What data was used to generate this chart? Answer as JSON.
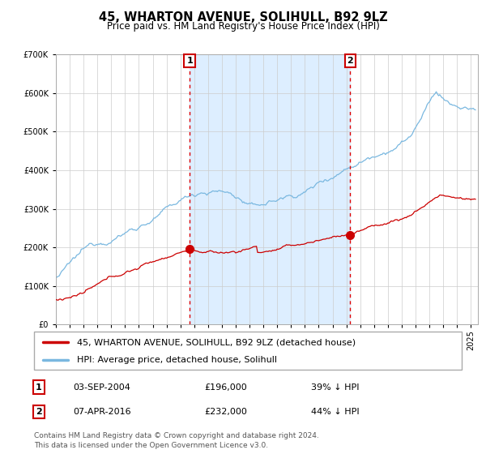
{
  "title": "45, WHARTON AVENUE, SOLIHULL, B92 9LZ",
  "subtitle": "Price paid vs. HM Land Registry's House Price Index (HPI)",
  "legend_line1": "45, WHARTON AVENUE, SOLIHULL, B92 9LZ (detached house)",
  "legend_line2": "HPI: Average price, detached house, Solihull",
  "transaction1_date": "03-SEP-2004",
  "transaction1_price": "£196,000",
  "transaction1_hpi": "39% ↓ HPI",
  "transaction2_date": "07-APR-2016",
  "transaction2_price": "£232,000",
  "transaction2_hpi": "44% ↓ HPI",
  "footer": "Contains HM Land Registry data © Crown copyright and database right 2024.\nThis data is licensed under the Open Government Licence v3.0.",
  "marker1_year": 2004.67,
  "marker1_value": 196000,
  "marker2_year": 2016.27,
  "marker2_value": 232000,
  "vline1_year": 2004.67,
  "vline2_year": 2016.27,
  "ylim": [
    0,
    700000
  ],
  "xlim_start": 1995.0,
  "xlim_end": 2025.5,
  "hpi_color": "#7ab8e0",
  "property_color": "#cc0000",
  "shade_color": "#ddeeff",
  "vline_color": "#dd0000",
  "grid_color": "#cccccc",
  "background_color": "#ffffff"
}
